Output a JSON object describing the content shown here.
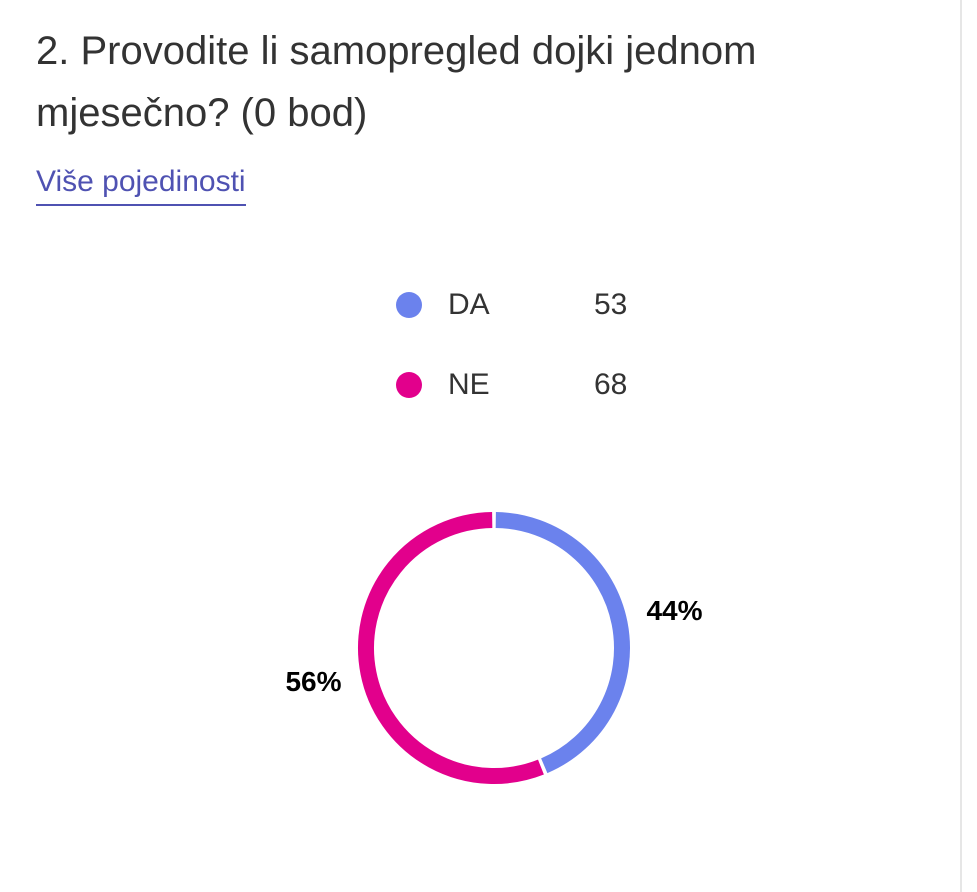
{
  "question": {
    "title": "2. Provodite li samopregled dojki jednom mjesečno? (0 bod)",
    "details_link": "Više pojedinosti"
  },
  "legend": [
    {
      "label": "DA",
      "count": "53",
      "color": "#6b82ed"
    },
    {
      "label": "NE",
      "count": "68",
      "color": "#e2008c"
    }
  ],
  "chart_data": {
    "type": "pie",
    "donut": true,
    "categories": [
      "DA",
      "NE"
    ],
    "values": [
      53,
      68
    ],
    "percent_labels": [
      "44%",
      "56%"
    ],
    "colors": [
      "#6b82ed",
      "#e2008c"
    ],
    "legend_position": "top"
  }
}
